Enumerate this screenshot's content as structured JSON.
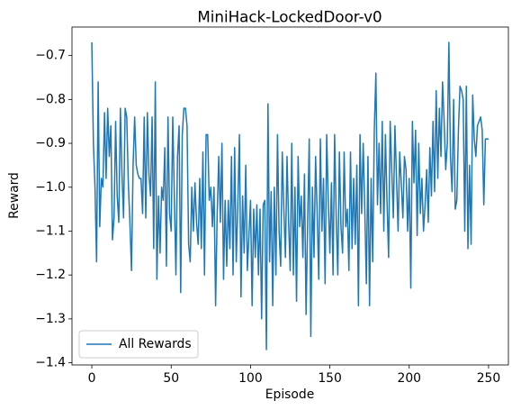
{
  "chart_data": {
    "type": "line",
    "title": "MiniHack-LockedDoor-v0",
    "x_label": "Episode",
    "y_label": "Reward",
    "x": [
      0,
      1,
      2,
      3,
      4,
      5,
      6,
      7,
      8,
      9,
      10,
      11,
      12,
      13,
      14,
      15,
      16,
      17,
      18,
      19,
      20,
      21,
      22,
      23,
      24,
      25,
      26,
      27,
      28,
      29,
      30,
      31,
      32,
      33,
      34,
      35,
      36,
      37,
      38,
      39,
      40,
      41,
      42,
      43,
      44,
      45,
      46,
      47,
      48,
      49,
      50,
      51,
      52,
      53,
      54,
      55,
      56,
      57,
      58,
      59,
      60,
      61,
      62,
      63,
      64,
      65,
      66,
      67,
      68,
      69,
      70,
      71,
      72,
      73,
      74,
      75,
      76,
      77,
      78,
      79,
      80,
      81,
      82,
      83,
      84,
      85,
      86,
      87,
      88,
      89,
      90,
      91,
      92,
      93,
      94,
      95,
      96,
      97,
      98,
      99,
      100,
      101,
      102,
      103,
      104,
      105,
      106,
      107,
      108,
      109,
      110,
      111,
      112,
      113,
      114,
      115,
      116,
      117,
      118,
      119,
      120,
      121,
      122,
      123,
      124,
      125,
      126,
      127,
      128,
      129,
      130,
      131,
      132,
      133,
      134,
      135,
      136,
      137,
      138,
      139,
      140,
      141,
      142,
      143,
      144,
      145,
      146,
      147,
      148,
      149,
      150,
      151,
      152,
      153,
      154,
      155,
      156,
      157,
      158,
      159,
      160,
      161,
      162,
      163,
      164,
      165,
      166,
      167,
      168,
      169,
      170,
      171,
      172,
      173,
      174,
      175,
      176,
      177,
      178,
      179,
      180,
      181,
      182,
      183,
      184,
      185,
      186,
      187,
      188,
      189,
      190,
      191,
      192,
      193,
      194,
      195,
      196,
      197,
      198,
      199,
      200,
      201,
      202,
      203,
      204,
      205,
      206,
      207,
      208,
      209,
      210,
      211,
      212,
      213,
      214,
      215,
      216,
      217,
      218,
      219,
      220,
      221,
      222,
      223,
      224,
      225,
      226,
      227,
      228,
      229,
      230,
      231,
      232,
      233,
      234,
      235,
      236,
      237,
      238,
      239,
      240,
      241,
      242,
      243,
      244,
      245,
      246,
      247,
      248,
      249,
      250
    ],
    "series": [
      {
        "name": "All Rewards",
        "color": "#1f77b4",
        "values": [
          -0.67,
          -0.9,
          -1.0,
          -1.17,
          -0.76,
          -1.09,
          -0.98,
          -1.0,
          -0.83,
          -0.98,
          -0.82,
          -0.93,
          -0.86,
          -1.12,
          -1.07,
          -0.85,
          -1.02,
          -1.08,
          -0.82,
          -0.97,
          -1.07,
          -0.82,
          -0.84,
          -0.99,
          -1.08,
          -1.19,
          -0.95,
          -0.84,
          -0.95,
          -0.97,
          -0.98,
          -0.98,
          -1.06,
          -0.84,
          -1.07,
          -0.83,
          -0.97,
          -1.02,
          -0.84,
          -1.14,
          -0.76,
          -1.21,
          -1.02,
          -1.15,
          -1.0,
          -1.03,
          -0.91,
          -1.18,
          -0.84,
          -1.06,
          -1.1,
          -0.84,
          -1.02,
          -1.2,
          -0.93,
          -0.86,
          -1.24,
          -0.88,
          -0.82,
          -0.82,
          -0.86,
          -1.13,
          -1.17,
          -1.0,
          -1.1,
          -0.99,
          -1.08,
          -1.13,
          -0.98,
          -1.14,
          -0.92,
          -1.2,
          -0.88,
          -0.88,
          -1.03,
          -1.0,
          -1.09,
          -1.0,
          -1.27,
          -1.06,
          -0.93,
          -1.08,
          -0.9,
          -1.21,
          -1.03,
          -1.18,
          -1.03,
          -1.14,
          -0.93,
          -1.2,
          -0.91,
          -1.17,
          -1.04,
          -0.88,
          -1.25,
          -1.02,
          -1.15,
          -0.95,
          -1.19,
          -1.11,
          -1.03,
          -1.27,
          -1.05,
          -1.16,
          -1.04,
          -1.2,
          -1.05,
          -1.3,
          -1.04,
          -1.03,
          -1.37,
          -0.81,
          -1.17,
          -1.01,
          -1.27,
          -1.0,
          -1.2,
          -0.88,
          -1.1,
          -1.18,
          -0.92,
          -1.05,
          -1.16,
          -0.93,
          -1.08,
          -1.19,
          -0.9,
          -1.2,
          -1.0,
          -1.26,
          -0.93,
          -1.09,
          -1.02,
          -1.16,
          -0.97,
          -1.29,
          -1.08,
          -0.89,
          -1.34,
          -1.0,
          -1.16,
          -0.93,
          -1.06,
          -1.21,
          -0.89,
          -1.1,
          -0.98,
          -1.22,
          -0.88,
          -1.03,
          -1.15,
          -0.99,
          -1.2,
          -0.88,
          -1.07,
          -1.2,
          -0.92,
          -1.09,
          -1.15,
          -0.92,
          -1.09,
          -1.05,
          -1.19,
          -0.92,
          -1.14,
          -0.98,
          -1.13,
          -0.95,
          -1.27,
          -0.88,
          -1.06,
          -0.9,
          -1.05,
          -1.22,
          -0.93,
          -1.27,
          -0.98,
          -1.17,
          -0.87,
          -0.74,
          -1.04,
          -0.9,
          -1.06,
          -0.85,
          -1.1,
          -0.88,
          -1.03,
          -1.16,
          -0.85,
          -0.96,
          -1.07,
          -0.86,
          -0.98,
          -1.1,
          -0.92,
          -0.99,
          -1.07,
          -0.93,
          -0.96,
          -1.1,
          -0.98,
          -1.23,
          -0.85,
          -0.99,
          -0.87,
          -1.11,
          -0.9,
          -1.06,
          -0.98,
          -1.1,
          -1.04,
          -0.96,
          -1.08,
          -0.91,
          -1.02,
          -0.85,
          -1.01,
          -0.78,
          -0.98,
          -0.82,
          -0.93,
          -0.76,
          -0.85,
          -0.96,
          -0.9,
          -0.67,
          -0.93,
          -1.01,
          -0.8,
          -1.05,
          -1.03,
          -0.87,
          -0.77,
          -0.78,
          -0.8,
          -1.1,
          -0.77,
          -1.14,
          -0.95,
          -1.13,
          -0.79,
          -0.89,
          -0.93,
          -0.86,
          -0.85,
          -0.84,
          -0.87,
          -1.04,
          -0.89,
          -0.89,
          -0.89
        ]
      }
    ],
    "xlim": [
      -12.5,
      262.5
    ],
    "xticks": [
      0,
      50,
      100,
      150,
      200,
      250
    ],
    "ylim": [
      -1.405,
      -0.635
    ],
    "yticks": [
      {
        "value": -1.4,
        "label": "−1.4"
      },
      {
        "value": -1.3,
        "label": "−1.3"
      },
      {
        "value": -1.2,
        "label": "−1.2"
      },
      {
        "value": -1.1,
        "label": "−1.1"
      },
      {
        "value": -1.0,
        "label": "−1.0"
      },
      {
        "value": -0.9,
        "label": "−0.9"
      },
      {
        "value": -0.8,
        "label": "−0.8"
      },
      {
        "value": -0.7,
        "label": "−0.7"
      }
    ],
    "legend": "lower left",
    "grid": false
  }
}
